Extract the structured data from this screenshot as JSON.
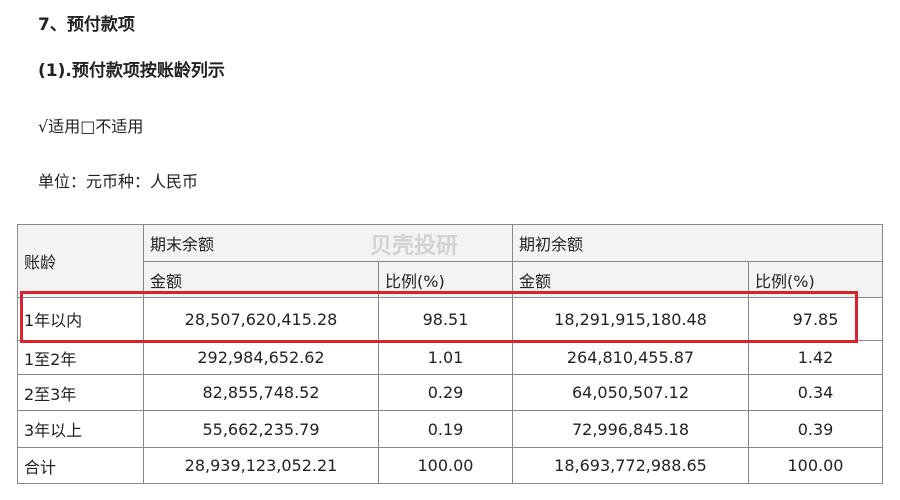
{
  "heading": "7、预付款项",
  "subheading": "(1).预付款项按账龄列示",
  "applicability": "√适用□不适用",
  "unit": "单位：元币种：人民币",
  "watermark": "贝壳投研",
  "table": {
    "header": {
      "age": "账龄",
      "closing": "期末余额",
      "opening": "期初余额",
      "closing_amount": "金额",
      "closing_ratio": "比例(%)",
      "opening_amount": "金额",
      "opening_ratio": "比例(%)"
    },
    "rows": [
      [
        "1年以内",
        "28,507,620,415.28",
        "98.51",
        "18,291,915,180.48",
        "97.85"
      ],
      [
        "1至2年",
        "292,984,652.62",
        "1.01",
        "264,810,455.87",
        "1.42"
      ],
      [
        "2至3年",
        "82,855,748.52",
        "0.29",
        "64,050,507.12",
        "0.34"
      ],
      [
        "3年以上",
        "55,662,235.79",
        "0.19",
        "72,996,845.18",
        "0.39"
      ],
      [
        "合计",
        "28,939,123,052.21",
        "100.00",
        "18,693,772,988.65",
        "100.00"
      ]
    ]
  }
}
